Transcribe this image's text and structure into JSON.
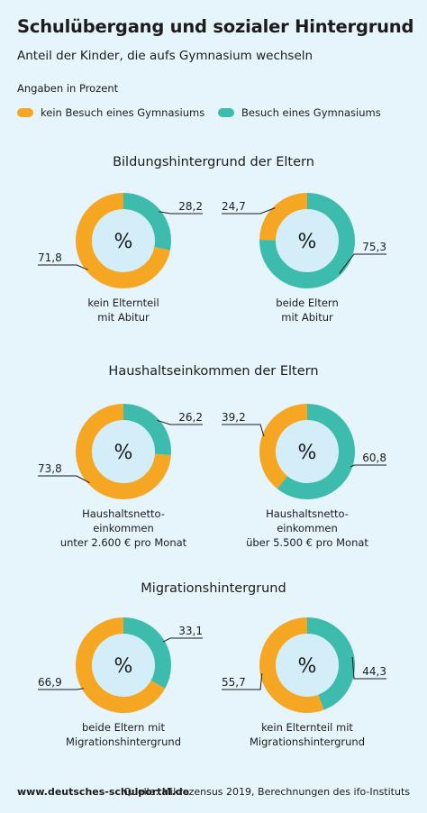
{
  "title": "Schulübergang und sozialer Hintergrund",
  "subtitle": "Anteil der Kinder, die aufs Gymnasium wechseln",
  "unit_note": "Angaben in Prozent",
  "legend": [
    {
      "label": "kein Besuch eines Gymnasiums",
      "color": "#f5a623"
    },
    {
      "label": "Besuch eines Gymnasiums",
      "color": "#3dbcad"
    }
  ],
  "sections": [
    {
      "title": "Bildungshintergrund der Eltern"
    },
    {
      "title": "Haushaltseinkommen der Eltern"
    },
    {
      "title": "Migrationshintergrund"
    }
  ],
  "center_symbol": "%",
  "chart_data": [
    {
      "type": "pie",
      "section": "Bildungshintergrund der Eltern",
      "caption": [
        "kein Elternteil",
        "mit Abitur"
      ],
      "slices": [
        {
          "name": "kein Besuch eines Gymnasiums",
          "value": 71.8,
          "label": "71,8"
        },
        {
          "name": "Besuch eines Gymnasiums",
          "value": 28.2,
          "label": "28,2"
        }
      ]
    },
    {
      "type": "pie",
      "section": "Bildungshintergrund der Eltern",
      "caption": [
        "beide Eltern",
        "mit Abitur"
      ],
      "slices": [
        {
          "name": "kein Besuch eines Gymnasiums",
          "value": 24.7,
          "label": "24,7"
        },
        {
          "name": "Besuch eines Gymnasiums",
          "value": 75.3,
          "label": "75,3"
        }
      ]
    },
    {
      "type": "pie",
      "section": "Haushaltseinkommen der Eltern",
      "caption": [
        "Haushaltsnetto-",
        "einkommen",
        "unter 2.600 € pro Monat"
      ],
      "slices": [
        {
          "name": "kein Besuch eines Gymnasiums",
          "value": 73.8,
          "label": "73,8"
        },
        {
          "name": "Besuch eines Gymnasiums",
          "value": 26.2,
          "label": "26,2"
        }
      ]
    },
    {
      "type": "pie",
      "section": "Haushaltseinkommen der Eltern",
      "caption": [
        "Haushaltsnetto-",
        "einkommen",
        "über 5.500 € pro Monat"
      ],
      "slices": [
        {
          "name": "kein Besuch eines Gymnasiums",
          "value": 39.2,
          "label": "39,2"
        },
        {
          "name": "Besuch eines Gymnasiums",
          "value": 60.8,
          "label": "60,8"
        }
      ]
    },
    {
      "type": "pie",
      "section": "Migrationshintergrund",
      "caption": [
        "beide Eltern mit",
        "Migrationshintergrund"
      ],
      "slices": [
        {
          "name": "kein Besuch eines Gymnasiums",
          "value": 66.9,
          "label": "66,9"
        },
        {
          "name": "Besuch eines Gymnasiums",
          "value": 33.1,
          "label": "33,1"
        }
      ]
    },
    {
      "type": "pie",
      "section": "Migrationshintergrund",
      "caption": [
        "kein Elternteil mit",
        "Migrationshintergrund"
      ],
      "slices": [
        {
          "name": "kein Besuch eines Gymnasiums",
          "value": 55.7,
          "label": "55,7"
        },
        {
          "name": "Besuch eines Gymnasiums",
          "value": 44.3,
          "label": "44,3"
        }
      ]
    }
  ],
  "footer": {
    "url": "www.deutsches-schulportal.de",
    "source": "Quelle: Mikrozensus 2019, Berechnungen des ifo-Instituts"
  }
}
